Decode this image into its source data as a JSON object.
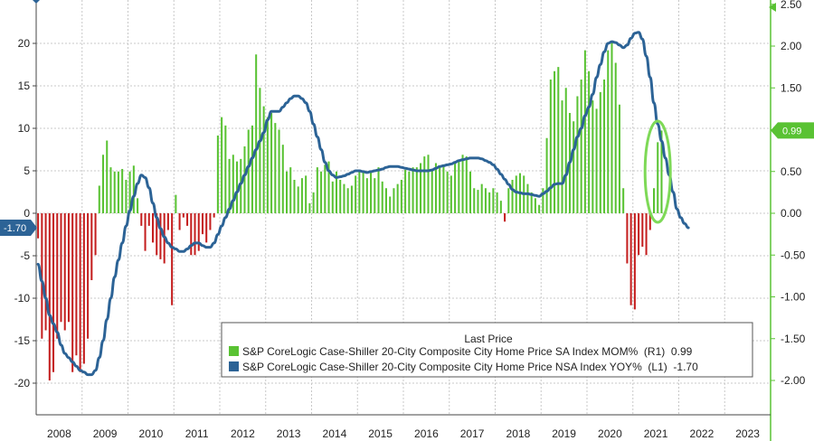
{
  "chart_data": {
    "type": "bar+line",
    "title": "",
    "legend_title": "Last Price",
    "legend_placement": "bottom-right",
    "x_years": [
      "2008",
      "2009",
      "2010",
      "2011",
      "2012",
      "2013",
      "2014",
      "2015",
      "2016",
      "2017",
      "2018",
      "2019",
      "2020",
      "2021",
      "2022",
      "2023"
    ],
    "left_axis": {
      "ylim": [
        -23,
        24
      ],
      "ticks": [
        20,
        15,
        10,
        5,
        0,
        -5,
        -10,
        -15,
        -20
      ],
      "tick_labels": [
        "20",
        "15",
        "10",
        "5",
        "0",
        "-5",
        "-10",
        "-15",
        "-20"
      ]
    },
    "right_axis": {
      "ylim": [
        -2.3,
        2.5
      ],
      "ticks": [
        2.5,
        2.0,
        1.5,
        1.0,
        0.5,
        0.0,
        -0.5,
        -1.0,
        -1.5,
        -2.0
      ],
      "tick_labels": [
        "2.50",
        "2.00",
        "1.50",
        "1.00",
        "0.50",
        "0.00",
        "-0.50",
        "-1.00",
        "-1.50",
        "-2.00"
      ]
    },
    "series": [
      {
        "name": "S&P CoreLogic Case-Shiller 20-City Composite City Home Price SA Index MOM%",
        "axis": "R1",
        "type": "bar",
        "last_value": "0.99",
        "legend_label": "S&P CoreLogic Case-Shiller 20-City Composite City Home Price SA Index MOM%  (R1)  0.99",
        "color_positive": "#59c233",
        "color_negative": "#c41e1e",
        "start": "2008-01",
        "values": [
          -0.3,
          -1.5,
          -1.4,
          -2.0,
          -1.9,
          -1.5,
          -1.3,
          -1.4,
          -1.3,
          -1.9,
          -1.7,
          -1.9,
          -1.8,
          -1.5,
          -0.8,
          -0.5,
          0.33,
          0.7,
          0.87,
          0.55,
          0.5,
          0.5,
          0.53,
          0.4,
          0.5,
          0.57,
          0.18,
          -0.15,
          -0.45,
          -0.15,
          -0.35,
          -0.5,
          -0.55,
          -0.6,
          -0.2,
          -1.1,
          0.22,
          -0.2,
          -0.05,
          -0.15,
          -0.5,
          -0.5,
          -0.45,
          -0.25,
          -0.35,
          -0.2,
          -0.05,
          0.93,
          1.15,
          1.05,
          0.65,
          0.7,
          0.62,
          0.65,
          0.8,
          1.0,
          1.05,
          1.9,
          1.5,
          1.28,
          1.15,
          1.2,
          1.08,
          1.0,
          0.82,
          0.5,
          0.55,
          0.4,
          0.32,
          0.42,
          0.45,
          0.12,
          0.25,
          0.55,
          0.5,
          0.58,
          0.62,
          0.38,
          0.5,
          0.4,
          0.35,
          0.3,
          0.33,
          0.45,
          0.52,
          0.5,
          0.42,
          0.5,
          0.42,
          0.55,
          0.38,
          0.3,
          0.2,
          0.3,
          0.35,
          0.4,
          0.52,
          0.5,
          0.55,
          0.55,
          0.6,
          0.68,
          0.7,
          0.52,
          0.6,
          0.55,
          0.58,
          0.5,
          0.45,
          0.6,
          0.62,
          0.7,
          0.68,
          0.5,
          0.3,
          0.28,
          0.35,
          0.3,
          0.25,
          0.3,
          0.25,
          0.15,
          -0.1,
          0.3,
          0.4,
          0.45,
          0.48,
          0.45,
          0.35,
          0.25,
          0.18,
          0.1,
          0.3,
          0.9,
          1.6,
          1.7,
          1.75,
          1.35,
          1.5,
          1.2,
          1.1,
          1.4,
          1.6,
          1.95,
          1.7,
          1.35,
          1.25,
          1.45,
          1.6,
          1.95,
          2.05,
          1.8,
          1.3,
          0.3,
          -0.6,
          -1.1,
          -1.15,
          -0.5,
          -0.4,
          -0.5,
          -0.2,
          0.3,
          0.85,
          0.99
        ]
      },
      {
        "name": "S&P CoreLogic Case-Shiller 20-City Composite City Home Price NSA Index YOY%",
        "axis": "L1",
        "type": "line",
        "last_value": "-1.70",
        "legend_label": "S&P CoreLogic Case-Shiller 20-City Composite City Home Price NSA Index YOY%  (L1)  -1.70",
        "color": "#2c6396",
        "start": "2008-01",
        "values": [
          -6,
          -8,
          -10,
          -12,
          -13,
          -14,
          -15.5,
          -16.5,
          -17,
          -17.5,
          -18,
          -18.5,
          -18.7,
          -19,
          -19,
          -18.5,
          -17,
          -15,
          -12.5,
          -10,
          -7.5,
          -5.5,
          -3.5,
          -1.5,
          0.3,
          2,
          3.5,
          4.5,
          4.2,
          3,
          1.2,
          -0.5,
          -1.8,
          -2.8,
          -3.5,
          -4,
          -4.2,
          -4.5,
          -4.5,
          -4.2,
          -3.8,
          -3.5,
          -3.5,
          -3.8,
          -4,
          -4,
          -3.5,
          -2.5,
          -1.5,
          -0.5,
          0.5,
          1.5,
          2.5,
          3.5,
          4.5,
          5.5,
          6.5,
          7.5,
          8.5,
          9.5,
          11,
          12,
          12,
          12,
          12.5,
          13,
          13.5,
          13.8,
          13.8,
          13.5,
          13,
          12,
          10.5,
          9,
          7.5,
          6,
          5,
          4.5,
          4.2,
          4.3,
          4.4,
          4.6,
          4.8,
          5,
          5,
          4.9,
          4.8,
          4.9,
          5,
          5.1,
          5.2,
          5.4,
          5.5,
          5.5,
          5.5,
          5.4,
          5.3,
          5.2,
          5.1,
          5,
          5,
          5,
          5,
          5.1,
          5.3,
          5.5,
          5.6,
          5.7,
          5.8,
          6,
          6.2,
          6.3,
          6.4,
          6.5,
          6.5,
          6.5,
          6.4,
          6.2,
          6,
          5.7,
          5.2,
          4.6,
          4,
          3.4,
          2.8,
          2.5,
          2.4,
          2.3,
          2.3,
          2.2,
          2.1,
          2,
          2.3,
          2.6,
          3,
          3.4,
          3.5,
          3.5,
          4.5,
          6,
          7.5,
          9,
          10,
          11.5,
          12.5,
          14,
          16,
          17.5,
          19,
          20,
          20.2,
          20.1,
          19.8,
          19.5,
          19.8,
          20.6,
          21.2,
          21.3,
          20.5,
          18.5,
          16,
          13,
          10.5,
          8.5,
          6.5,
          4.5,
          2.5,
          0.5,
          -0.5,
          -1.2,
          -1.7
        ]
      }
    ],
    "highlight": {
      "shape": "ellipse",
      "label": "0.99",
      "color": "#7ed957"
    },
    "current_tags": {
      "left": "-1.70",
      "right": "0.99"
    }
  }
}
